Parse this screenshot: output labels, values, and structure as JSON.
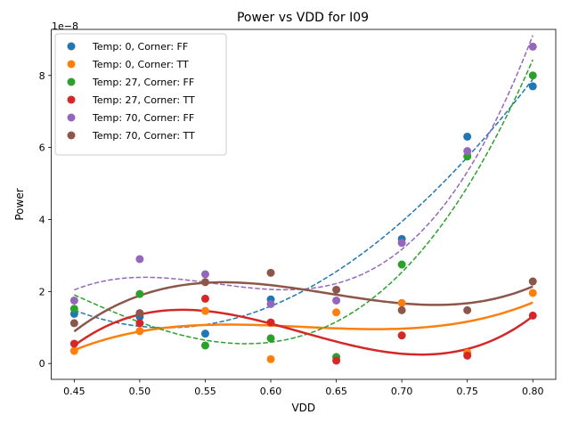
{
  "chart_data": {
    "type": "scatter",
    "title": "Power vs VDD for I09",
    "xlabel": "VDD",
    "ylabel": "Power",
    "y_multiplier_label": "1e−8",
    "xlim": [
      0.4325,
      0.8175
    ],
    "ylim": [
      -0.44,
      9.28
    ],
    "x_ticks": [
      "0.45",
      "0.50",
      "0.55",
      "0.60",
      "0.65",
      "0.70",
      "0.75",
      "0.80"
    ],
    "x_tick_values": [
      0.45,
      0.5,
      0.55,
      0.6,
      0.65,
      0.7,
      0.75,
      0.8
    ],
    "y_ticks": [
      "0",
      "2",
      "4",
      "6",
      "8"
    ],
    "y_tick_values": [
      0,
      2,
      4,
      6,
      8
    ],
    "grid": false,
    "legend_position": "top-left",
    "x": [
      0.45,
      0.5,
      0.55,
      0.6,
      0.65,
      0.7,
      0.75,
      0.8
    ],
    "series": [
      {
        "name": "Temp: 0, Corner: FF",
        "color": "#1f77b4",
        "fit_style": "dashed",
        "values": [
          1.38,
          1.3,
          0.83,
          1.78,
          null,
          3.46,
          6.3,
          7.7
        ]
      },
      {
        "name": "Temp: 0, Corner: TT",
        "color": "#ff7f0e",
        "fit_style": "solid",
        "values": [
          0.35,
          0.9,
          1.46,
          0.12,
          1.42,
          1.68,
          0.3,
          1.96
        ]
      },
      {
        "name": "Temp: 27, Corner: FF",
        "color": "#2ca02c",
        "fit_style": "dashed",
        "values": [
          1.52,
          1.93,
          0.5,
          0.7,
          0.18,
          2.75,
          5.75,
          8.0
        ]
      },
      {
        "name": "Temp: 27, Corner: TT",
        "color": "#d62728",
        "fit_style": "solid",
        "values": [
          0.55,
          1.12,
          1.8,
          1.14,
          0.08,
          0.78,
          0.22,
          1.33
        ]
      },
      {
        "name": "Temp: 70, Corner: FF",
        "color": "#9467bd",
        "fit_style": "dashed",
        "values": [
          1.75,
          2.9,
          2.48,
          1.65,
          1.75,
          3.35,
          5.9,
          8.8
        ]
      },
      {
        "name": "Temp: 70, Corner: TT",
        "color": "#8c564b",
        "fit_style": "solid",
        "values": [
          1.12,
          1.4,
          2.26,
          2.52,
          2.05,
          1.48,
          1.48,
          2.28
        ]
      }
    ]
  }
}
